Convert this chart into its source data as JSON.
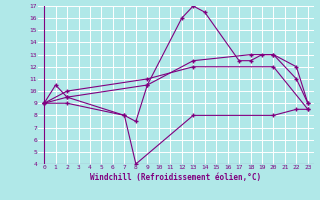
{
  "background_color": "#b0e8e8",
  "plot_bg_color": "#b0e8e8",
  "line_color": "#800080",
  "grid_color": "#ffffff",
  "xlabel": "Windchill (Refroidissement éolien,°C)",
  "xlabel_color": "#800080",
  "tick_color": "#800080",
  "xlim": [
    -0.5,
    23.5
  ],
  "ylim": [
    4,
    17
  ],
  "xticks": [
    0,
    1,
    2,
    3,
    4,
    5,
    6,
    7,
    8,
    9,
    10,
    11,
    12,
    13,
    14,
    15,
    16,
    17,
    18,
    19,
    20,
    21,
    22,
    23
  ],
  "yticks": [
    4,
    5,
    6,
    7,
    8,
    9,
    10,
    11,
    12,
    13,
    14,
    15,
    16,
    17
  ],
  "line1_x": [
    0,
    1,
    2,
    7,
    8,
    9,
    12,
    13,
    14,
    17,
    18,
    19,
    20,
    22,
    23
  ],
  "line1_y": [
    9,
    10.5,
    9.5,
    8,
    7.5,
    10.5,
    16,
    17,
    16.5,
    12.5,
    12.5,
    13,
    13,
    12,
    9
  ],
  "line2_x": [
    0,
    2,
    7,
    8,
    13,
    20,
    22,
    23
  ],
  "line2_y": [
    9,
    9,
    8,
    4,
    8,
    8,
    8.5,
    8.5
  ],
  "line3_x": [
    0,
    2,
    9,
    13,
    18,
    20,
    22,
    23
  ],
  "line3_y": [
    9,
    9.5,
    10.5,
    12.5,
    13,
    13,
    11,
    9
  ],
  "line4_x": [
    0,
    2,
    9,
    13,
    20,
    23
  ],
  "line4_y": [
    9,
    10,
    11,
    12,
    12,
    8.5
  ],
  "marker": "+"
}
